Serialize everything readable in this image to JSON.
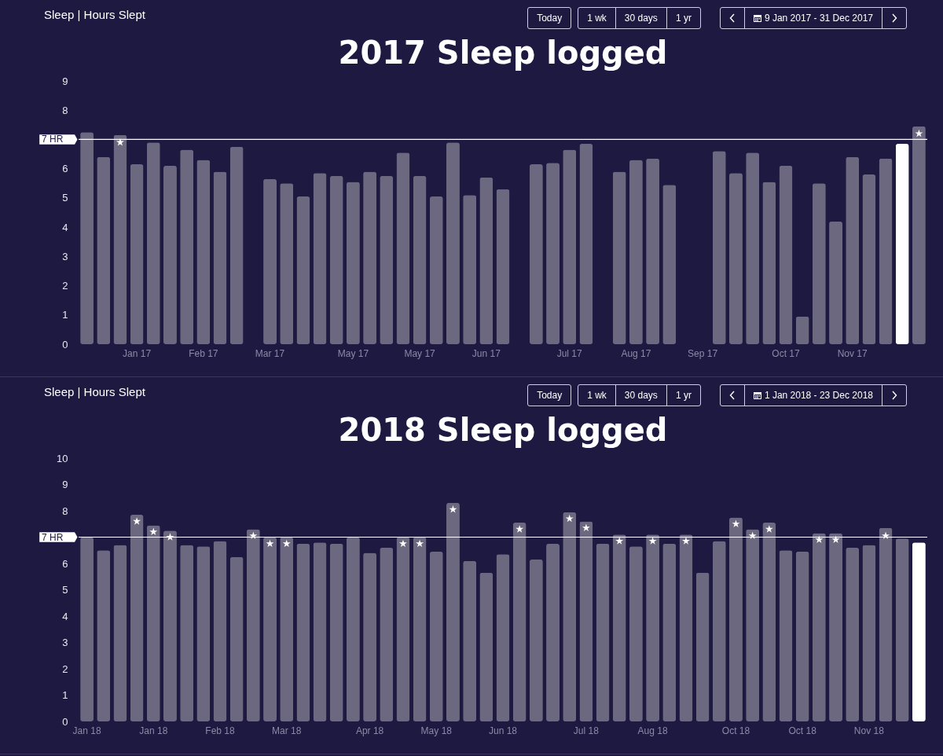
{
  "chart_data": [
    {
      "type": "bar",
      "title": "2017 Sleep logged",
      "annotations": [
        "Sleep | Hours Slept",
        "Today",
        "1 wk",
        "30 days",
        "1 yr",
        "9 Jan 2017 - 31 Dec 2017"
      ],
      "categories": [
        null,
        null,
        null,
        "Jan 17",
        null,
        null,
        null,
        "Feb 17",
        null,
        null,
        null,
        "Mar 17",
        null,
        null,
        null,
        null,
        "May 17",
        null,
        null,
        null,
        "May 17",
        null,
        null,
        null,
        "Jun 17",
        null,
        null,
        null,
        null,
        "Jul 17",
        null,
        null,
        null,
        "Aug 17",
        null,
        null,
        null,
        "Sep 17",
        null,
        null,
        null,
        null,
        "Oct 17",
        null,
        null,
        null,
        "Nov 17",
        null,
        null,
        null,
        null
      ],
      "series": [
        {
          "type": "bar",
          "colors": [
            "#6b6880",
            "#6b6880",
            "#6b6880",
            "#6b6880",
            "#6b6880",
            "#6b6880",
            "#6b6880",
            "#6b6880",
            "#6b6880",
            "#6b6880",
            "#6b6880",
            "#6b6880",
            "#6b6880",
            "#6b6880",
            "#6b6880",
            "#6b6880",
            "#6b6880",
            "#6b6880",
            "#6b6880",
            "#6b6880",
            "#6b6880",
            "#6b6880",
            "#6b6880",
            "#6b6880",
            "#6b6880",
            "#6b6880",
            "#6b6880",
            "#6b6880",
            "#6b6880",
            "#6b6880",
            "#6b6880",
            "#6b6880",
            "#6b6880",
            "#6b6880",
            "#6b6880",
            "#6b6880",
            "#6b6880",
            "#6b6880",
            "#6b6880",
            "#6b6880",
            "#6b6880",
            "#6b6880",
            "#6b6880",
            "#6b6880",
            "#6b6880",
            "#6b6880",
            "#6b6880",
            "#6b6880",
            "#6b6880",
            "#ffffff",
            "#6b6880"
          ],
          "values": [
            7.25,
            6.4,
            7.15,
            6.15,
            6.9,
            6.1,
            6.65,
            6.3,
            5.9,
            6.75,
            null,
            5.65,
            5.5,
            5.05,
            5.85,
            5.75,
            5.55,
            5.9,
            5.75,
            6.55,
            5.75,
            5.05,
            6.9,
            5.1,
            5.7,
            5.3,
            null,
            6.15,
            6.2,
            6.65,
            6.85,
            null,
            5.9,
            6.3,
            6.35,
            5.45,
            null,
            null,
            6.6,
            5.85,
            6.55,
            5.55,
            6.1,
            0.95,
            5.5,
            4.2,
            6.4,
            5.8,
            6.35,
            6.85,
            7.45
          ]
        },
        {
          "type": "scatter",
          "marker": "star",
          "color": "#ffffff",
          "values": [
            null,
            null,
            6.9,
            null,
            null,
            null,
            null,
            null,
            null,
            null,
            null,
            null,
            null,
            null,
            null,
            null,
            null,
            null,
            null,
            null,
            null,
            null,
            null,
            null,
            null,
            null,
            null,
            null,
            null,
            null,
            null,
            null,
            null,
            null,
            null,
            null,
            null,
            null,
            null,
            null,
            null,
            null,
            null,
            null,
            null,
            null,
            null,
            null,
            null,
            null,
            7.2
          ]
        }
      ],
      "ylim": [
        0,
        9
      ],
      "yticks": [
        0,
        1,
        2,
        3,
        4,
        5,
        6,
        8,
        9
      ],
      "ref_lines": [
        {
          "axis": "y",
          "value": 7,
          "label": "7 HR",
          "color": "#ffffff"
        }
      ]
    },
    {
      "type": "bar",
      "title": "2018 Sleep logged",
      "annotations": [
        "Sleep | Hours Slept",
        "Today",
        "1 wk",
        "30 days",
        "1 yr",
        "1 Jan 2018 - 23 Dec 2018"
      ],
      "categories": [
        "Jan 18",
        null,
        null,
        null,
        "Jan 18",
        null,
        null,
        null,
        "Feb 18",
        null,
        null,
        null,
        "Mar 18",
        null,
        null,
        null,
        null,
        "Apr 18",
        null,
        null,
        null,
        "May 18",
        null,
        null,
        null,
        "Jun 18",
        null,
        null,
        null,
        null,
        "Jul 18",
        null,
        null,
        null,
        "Aug 18",
        null,
        null,
        null,
        null,
        "Oct 18",
        null,
        null,
        null,
        "Oct 18",
        null,
        null,
        null,
        "Nov 18",
        null,
        null,
        null
      ],
      "series": [
        {
          "type": "bar",
          "colors": [
            "#6b6880",
            "#6b6880",
            "#6b6880",
            "#6b6880",
            "#6b6880",
            "#6b6880",
            "#6b6880",
            "#6b6880",
            "#6b6880",
            "#6b6880",
            "#6b6880",
            "#6b6880",
            "#6b6880",
            "#6b6880",
            "#6b6880",
            "#6b6880",
            "#6b6880",
            "#6b6880",
            "#6b6880",
            "#6b6880",
            "#6b6880",
            "#6b6880",
            "#6b6880",
            "#6b6880",
            "#6b6880",
            "#6b6880",
            "#6b6880",
            "#6b6880",
            "#6b6880",
            "#6b6880",
            "#6b6880",
            "#6b6880",
            "#6b6880",
            "#6b6880",
            "#6b6880",
            "#6b6880",
            "#6b6880",
            "#6b6880",
            "#6b6880",
            "#6b6880",
            "#6b6880",
            "#6b6880",
            "#6b6880",
            "#6b6880",
            "#6b6880",
            "#6b6880",
            "#6b6880",
            "#6b6880",
            "#6b6880",
            "#6b6880",
            "#ffffff"
          ],
          "values": [
            7.0,
            6.5,
            6.7,
            7.85,
            7.45,
            7.25,
            6.7,
            6.65,
            6.85,
            6.25,
            7.3,
            7.0,
            7.0,
            6.75,
            6.8,
            6.75,
            7.0,
            6.4,
            6.6,
            7.0,
            7.0,
            6.45,
            8.3,
            6.1,
            5.65,
            6.35,
            7.55,
            6.15,
            6.75,
            7.95,
            7.6,
            6.75,
            7.1,
            6.65,
            7.1,
            6.75,
            7.1,
            5.65,
            6.85,
            7.75,
            7.3,
            7.55,
            6.5,
            6.45,
            7.15,
            7.15,
            6.6,
            6.7,
            7.35,
            6.95,
            6.8
          ]
        },
        {
          "type": "scatter",
          "marker": "star",
          "color": "#ffffff",
          "values": [
            null,
            null,
            null,
            7.6,
            7.2,
            7.0,
            null,
            null,
            null,
            null,
            7.05,
            6.75,
            6.75,
            null,
            null,
            null,
            null,
            null,
            null,
            6.75,
            6.75,
            null,
            8.05,
            null,
            null,
            null,
            7.3,
            null,
            null,
            7.7,
            7.35,
            null,
            6.85,
            null,
            6.85,
            null,
            6.85,
            null,
            null,
            7.5,
            7.05,
            7.3,
            null,
            null,
            6.9,
            6.9,
            null,
            null,
            7.05,
            null,
            null
          ]
        }
      ],
      "ylim": [
        0,
        10
      ],
      "yticks": [
        0,
        1,
        2,
        3,
        4,
        5,
        6,
        8,
        9,
        10
      ],
      "ref_lines": [
        {
          "axis": "y",
          "value": 7,
          "label": "7 HR",
          "color": "#ffffff"
        }
      ]
    }
  ]
}
